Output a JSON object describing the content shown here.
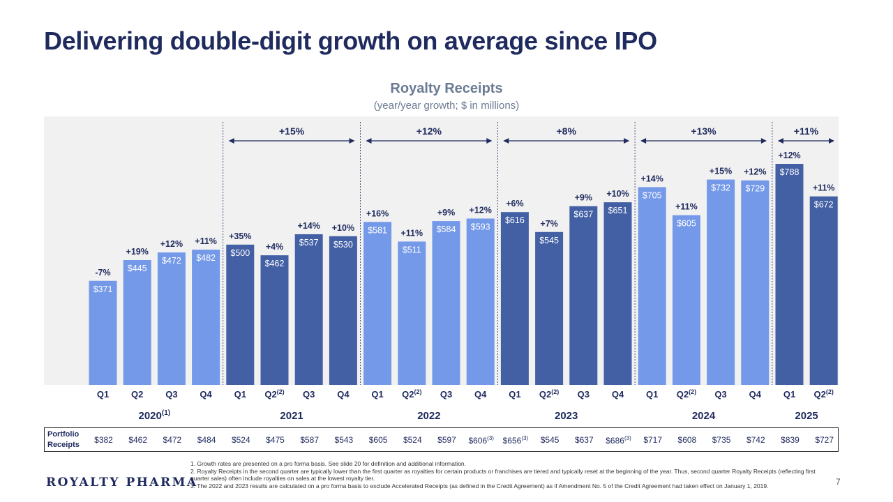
{
  "page": {
    "title": "Delivering double-digit growth on average since IPO",
    "page_number": "7",
    "logo_text": "ROYALTY PHARMA"
  },
  "chart_data": {
    "type": "bar",
    "title": "Royalty Receipts",
    "subtitle": "(year/year growth; $ in millions)",
    "ylim": [
      0,
      800
    ],
    "colors": {
      "light": "#7499e8",
      "dark": "#4360a5",
      "text": "#1f2a5e",
      "bg": "#f1f1f1"
    },
    "bars": [
      {
        "quarter": "Q1",
        "year": "2020",
        "value": 371,
        "label": "$371",
        "growth": "-7%",
        "color": "light"
      },
      {
        "quarter": "Q2",
        "year": "2020",
        "value": 445,
        "label": "$445",
        "growth": "+19%",
        "color": "light"
      },
      {
        "quarter": "Q3",
        "year": "2020",
        "value": 472,
        "label": "$472",
        "growth": "+12%",
        "color": "light"
      },
      {
        "quarter": "Q4",
        "year": "2020",
        "value": 482,
        "label": "$482",
        "growth": "+11%",
        "color": "light"
      },
      {
        "quarter": "Q1",
        "year": "2021",
        "value": 500,
        "label": "$500",
        "growth": "+35%",
        "color": "dark"
      },
      {
        "quarter": "Q2",
        "year": "2021",
        "value": 462,
        "label": "$462",
        "growth": "+4%",
        "color": "dark",
        "sup": "(2)"
      },
      {
        "quarter": "Q3",
        "year": "2021",
        "value": 537,
        "label": "$537",
        "growth": "+14%",
        "color": "dark"
      },
      {
        "quarter": "Q4",
        "year": "2021",
        "value": 530,
        "label": "$530",
        "growth": "+10%",
        "color": "dark"
      },
      {
        "quarter": "Q1",
        "year": "2022",
        "value": 581,
        "label": "$581",
        "growth": "+16%",
        "color": "light"
      },
      {
        "quarter": "Q2",
        "year": "2022",
        "value": 511,
        "label": "$511",
        "growth": "+11%",
        "color": "light",
        "sup": "(2)"
      },
      {
        "quarter": "Q3",
        "year": "2022",
        "value": 584,
        "label": "$584",
        "growth": "+9%",
        "color": "light"
      },
      {
        "quarter": "Q4",
        "year": "2022",
        "value": 593,
        "label": "$593",
        "growth": "+12%",
        "color": "light"
      },
      {
        "quarter": "Q1",
        "year": "2023",
        "value": 616,
        "label": "$616",
        "growth": "+6%",
        "color": "dark"
      },
      {
        "quarter": "Q2",
        "year": "2023",
        "value": 545,
        "label": "$545",
        "growth": "+7%",
        "color": "dark",
        "sup": "(2)"
      },
      {
        "quarter": "Q3",
        "year": "2023",
        "value": 637,
        "label": "$637",
        "growth": "+9%",
        "color": "dark"
      },
      {
        "quarter": "Q4",
        "year": "2023",
        "value": 651,
        "label": "$651",
        "growth": "+10%",
        "color": "dark"
      },
      {
        "quarter": "Q1",
        "year": "2024",
        "value": 705,
        "label": "$705",
        "growth": "+14%",
        "color": "light"
      },
      {
        "quarter": "Q2",
        "year": "2024",
        "value": 605,
        "label": "$605",
        "growth": "+11%",
        "color": "light",
        "sup": "(2)"
      },
      {
        "quarter": "Q3",
        "year": "2024",
        "value": 732,
        "label": "$732",
        "growth": "+15%",
        "color": "light"
      },
      {
        "quarter": "Q4",
        "year": "2024",
        "value": 729,
        "label": "$729",
        "growth": "+12%",
        "color": "light"
      },
      {
        "quarter": "Q1",
        "year": "2025",
        "value": 788,
        "label": "$788",
        "growth": "+12%",
        "color": "dark"
      },
      {
        "quarter": "Q2",
        "year": "2025",
        "value": 672,
        "label": "$672",
        "growth": "+11%",
        "color": "dark",
        "sup": "(2)"
      }
    ],
    "years": [
      {
        "label": "2020",
        "sup": "(1)"
      },
      {
        "label": "2021"
      },
      {
        "label": "2022"
      },
      {
        "label": "2023"
      },
      {
        "label": "2024"
      },
      {
        "label": "2025"
      }
    ],
    "annual_growth": [
      {
        "year": "2021",
        "label": "+15%"
      },
      {
        "year": "2022",
        "label": "+12%"
      },
      {
        "year": "2023",
        "label": "+8%"
      },
      {
        "year": "2024",
        "label": "+13%"
      },
      {
        "year": "2025",
        "label": "+11%"
      }
    ]
  },
  "portfolio_receipts": {
    "label_line1": "Portfolio",
    "label_line2": "Receipts",
    "values": [
      {
        "value": "$382"
      },
      {
        "value": "$462"
      },
      {
        "value": "$472"
      },
      {
        "value": "$484"
      },
      {
        "value": "$524"
      },
      {
        "value": "$475"
      },
      {
        "value": "$587"
      },
      {
        "value": "$543"
      },
      {
        "value": "$605"
      },
      {
        "value": "$524"
      },
      {
        "value": "$597"
      },
      {
        "value": "$606",
        "sup": "(3)"
      },
      {
        "value": "$656",
        "sup": "(3)"
      },
      {
        "value": "$545"
      },
      {
        "value": "$637"
      },
      {
        "value": "$686",
        "sup": "(3)"
      },
      {
        "value": "$717"
      },
      {
        "value": "$608"
      },
      {
        "value": "$735"
      },
      {
        "value": "$742"
      },
      {
        "value": "$839"
      },
      {
        "value": "$727"
      }
    ]
  },
  "footnotes": [
    "1. Growth rates are presented on a pro forma basis. See slide 20 for definition and additional information.",
    "2. Royalty Receipts in the second quarter are typically lower than the first quarter as royalties for certain products or franchises are tiered and typically reset at the beginning of the year. Thus, second quarter Royalty Receipts (reflecting first quarter sales) often include royalties on sales at the lowest royalty tier.",
    "3. The 2022 and 2023 results are calculated on a pro forma basis to exclude Accelerated Receipts (as defined in the Credit Agreement) as if Amendment No. 5 of the Credit Agreement had taken effect on January 1, 2019."
  ]
}
